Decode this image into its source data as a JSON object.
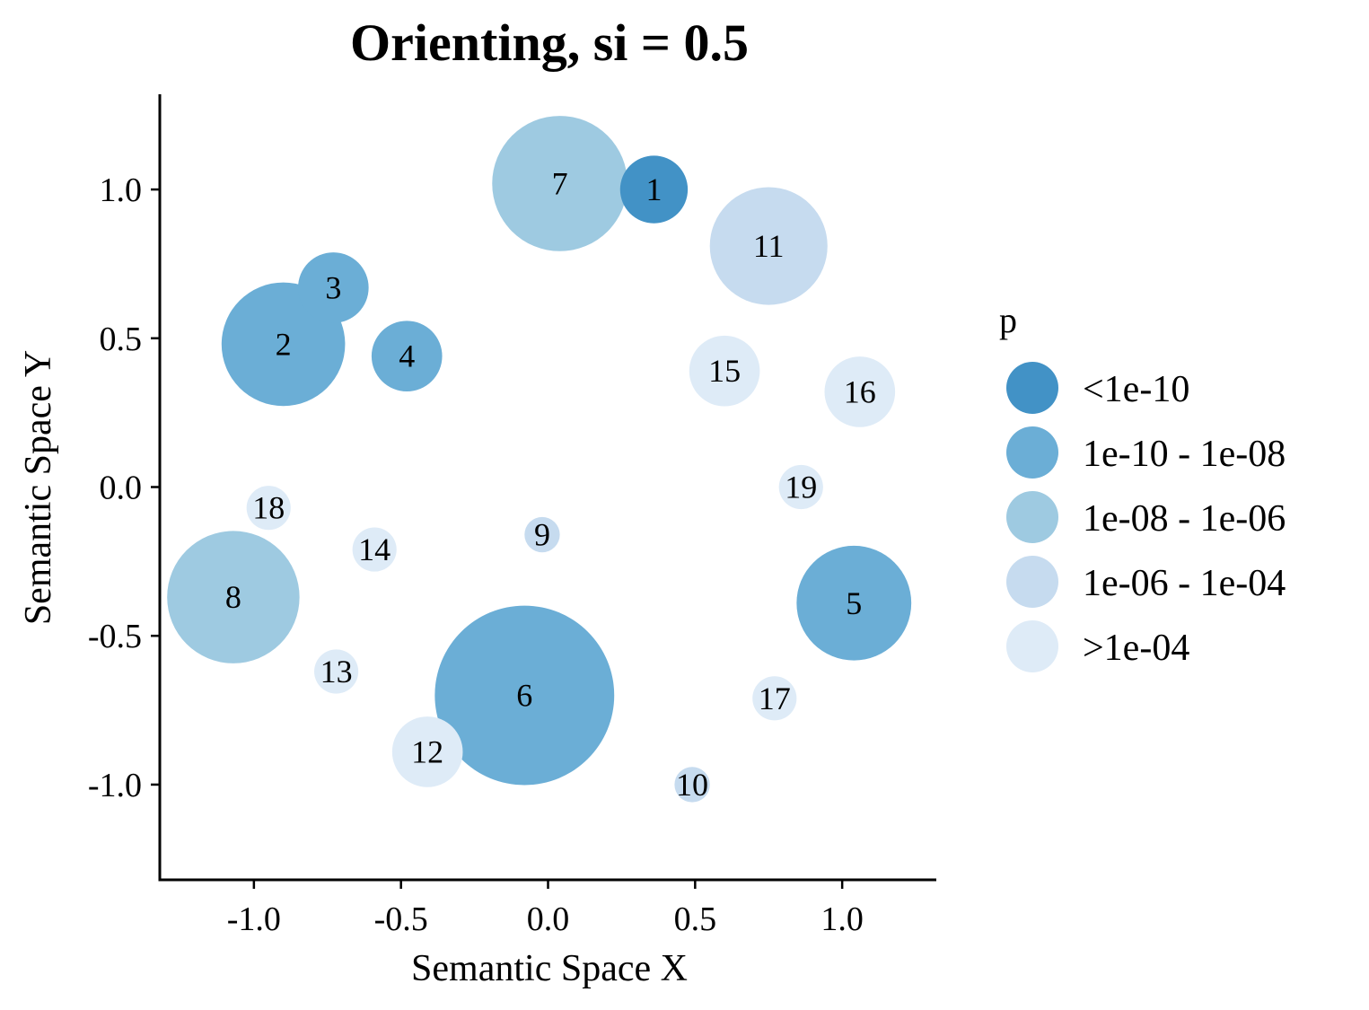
{
  "chart_data": {
    "type": "scatter",
    "title": "Orienting, si = 0.5",
    "xlabel": "Semantic Space X",
    "ylabel": "Semantic Space Y",
    "xlim": [
      -1.32,
      1.32
    ],
    "ylim": [
      -1.32,
      1.32
    ],
    "xticks": [
      -1.0,
      -0.5,
      0.0,
      0.5,
      1.0
    ],
    "yticks": [
      -1.0,
      -0.5,
      0.0,
      0.5,
      1.0
    ],
    "xtick_labels": [
      "-1.0",
      "-0.5",
      "0.0",
      "0.5",
      "1.0"
    ],
    "ytick_labels": [
      "-1.0",
      "-0.5",
      "0.0",
      "0.5",
      "1.0"
    ],
    "grid": false,
    "legend": {
      "title": "p",
      "placement": "right",
      "entries": [
        {
          "label": "<1e-10",
          "color": "#4292c6"
        },
        {
          "label": "1e-10 - 1e-08",
          "color": "#6baed6"
        },
        {
          "label": "1e-08 - 1e-06",
          "color": "#9ecae1"
        },
        {
          "label": "1e-06 - 1e-04",
          "color": "#c6dbef"
        },
        {
          "label": ">1e-04",
          "color": "#deebf7"
        }
      ]
    },
    "points": [
      {
        "label": "1",
        "x": 0.36,
        "y": 1.0,
        "size": 0.115,
        "p_bin": 0
      },
      {
        "label": "2",
        "x": -0.9,
        "y": 0.48,
        "size": 0.21,
        "p_bin": 1
      },
      {
        "label": "3",
        "x": -0.73,
        "y": 0.67,
        "size": 0.12,
        "p_bin": 1
      },
      {
        "label": "4",
        "x": -0.48,
        "y": 0.44,
        "size": 0.12,
        "p_bin": 1
      },
      {
        "label": "5",
        "x": 1.04,
        "y": -0.39,
        "size": 0.195,
        "p_bin": 1
      },
      {
        "label": "6",
        "x": -0.08,
        "y": -0.7,
        "size": 0.305,
        "p_bin": 1
      },
      {
        "label": "7",
        "x": 0.04,
        "y": 1.02,
        "size": 0.23,
        "p_bin": 2
      },
      {
        "label": "8",
        "x": -1.07,
        "y": -0.37,
        "size": 0.225,
        "p_bin": 2
      },
      {
        "label": "9",
        "x": -0.02,
        "y": -0.16,
        "size": 0.06,
        "p_bin": 3
      },
      {
        "label": "10",
        "x": 0.49,
        "y": -1.0,
        "size": 0.06,
        "p_bin": 3
      },
      {
        "label": "11",
        "x": 0.75,
        "y": 0.81,
        "size": 0.2,
        "p_bin": 3
      },
      {
        "label": "12",
        "x": -0.41,
        "y": -0.89,
        "size": 0.12,
        "p_bin": 4
      },
      {
        "label": "13",
        "x": -0.72,
        "y": -0.62,
        "size": 0.075,
        "p_bin": 4
      },
      {
        "label": "14",
        "x": -0.59,
        "y": -0.21,
        "size": 0.075,
        "p_bin": 4
      },
      {
        "label": "15",
        "x": 0.6,
        "y": 0.39,
        "size": 0.12,
        "p_bin": 4
      },
      {
        "label": "16",
        "x": 1.06,
        "y": 0.32,
        "size": 0.12,
        "p_bin": 4
      },
      {
        "label": "17",
        "x": 0.77,
        "y": -0.71,
        "size": 0.075,
        "p_bin": 4
      },
      {
        "label": "18",
        "x": -0.95,
        "y": -0.07,
        "size": 0.075,
        "p_bin": 4
      },
      {
        "label": "19",
        "x": 0.86,
        "y": 0.0,
        "size": 0.075,
        "p_bin": 4
      }
    ]
  }
}
